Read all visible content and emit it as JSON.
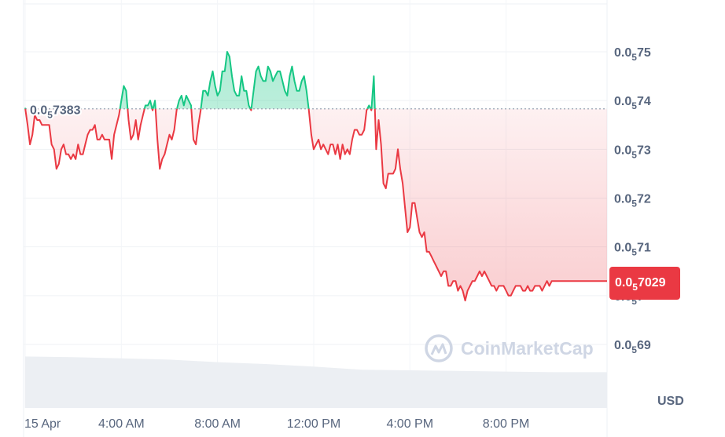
{
  "chart_data": {
    "type": "line",
    "title": "",
    "xlabel": "",
    "ylabel": "",
    "unit_label": "USD",
    "watermark": "CoinMarketCap",
    "reference": {
      "label_prefix": "0.0",
      "label_sub": "5",
      "label_rest": "7383",
      "value": 0.057383
    },
    "current": {
      "label_prefix": "0.0",
      "label_sub": "5",
      "label_rest": "7029",
      "value": 0.057029
    },
    "y_ticks": [
      {
        "prefix": "0.0",
        "sub": "5",
        "rest": "75",
        "value": 0.0575
      },
      {
        "prefix": "0.0",
        "sub": "5",
        "rest": "74",
        "value": 0.0574
      },
      {
        "prefix": "0.0",
        "sub": "5",
        "rest": "73",
        "value": 0.0573
      },
      {
        "prefix": "0.0",
        "sub": "5",
        "rest": "72",
        "value": 0.0572
      },
      {
        "prefix": "0.0",
        "sub": "5",
        "rest": "71",
        "value": 0.0571
      },
      {
        "prefix": "0.0",
        "sub": "5",
        "rest": "7",
        "value": 0.057
      },
      {
        "prefix": "0.0",
        "sub": "5",
        "rest": "69",
        "value": 0.0569
      }
    ],
    "ylim": [
      0.05685,
      0.0576
    ],
    "x_ticks": [
      {
        "label": "15 Apr",
        "hour": 0
      },
      {
        "label": "4:00 AM",
        "hour": 4
      },
      {
        "label": "8:00 AM",
        "hour": 8
      },
      {
        "label": "12:00 PM",
        "hour": 12
      },
      {
        "label": "4:00 PM",
        "hour": 16
      },
      {
        "label": "8:00 PM",
        "hour": 20
      }
    ],
    "xlim_hours": [
      0,
      24.2
    ],
    "up_color": "#16c784",
    "down_color": "#ea3943",
    "series": [
      {
        "x_hours": [
          0,
          0.1,
          0.2,
          0.3,
          0.4,
          0.5,
          0.6,
          0.7,
          0.8,
          0.9,
          1.0,
          1.1,
          1.2,
          1.3,
          1.4,
          1.5,
          1.6,
          1.7,
          1.8,
          1.9,
          2.0,
          2.1,
          2.2,
          2.3,
          2.4,
          2.5,
          2.6,
          2.7,
          2.8,
          2.9,
          3.0,
          3.1,
          3.2,
          3.3,
          3.4,
          3.5,
          3.6,
          3.7,
          3.8,
          3.9,
          4.0,
          4.1,
          4.2,
          4.3,
          4.4,
          4.5,
          4.6,
          4.7,
          4.8,
          4.9,
          5.0,
          5.1,
          5.2,
          5.3,
          5.4,
          5.5,
          5.6,
          5.7,
          5.8,
          5.9,
          6.0,
          6.1,
          6.2,
          6.3,
          6.4,
          6.5,
          6.6,
          6.7,
          6.8,
          6.9,
          7.0,
          7.1,
          7.2,
          7.3,
          7.4,
          7.5,
          7.6,
          7.7,
          7.8,
          7.9,
          8.0,
          8.1,
          8.2,
          8.3,
          8.4,
          8.5,
          8.6,
          8.7,
          8.8,
          8.9,
          9.0,
          9.1,
          9.2,
          9.3,
          9.4,
          9.5,
          9.6,
          9.7,
          9.8,
          9.9,
          10.0,
          10.1,
          10.2,
          10.3,
          10.4,
          10.5,
          10.6,
          10.7,
          10.8,
          10.9,
          11.0,
          11.1,
          11.2,
          11.3,
          11.4,
          11.5,
          11.6,
          11.7,
          11.8,
          11.9,
          12.0,
          12.1,
          12.2,
          12.3,
          12.4,
          12.5,
          12.6,
          12.7,
          12.8,
          12.9,
          13.0,
          13.1,
          13.2,
          13.3,
          13.4,
          13.5,
          13.6,
          13.7,
          13.8,
          13.9,
          14.0,
          14.1,
          14.2,
          14.3,
          14.4,
          14.5,
          14.6,
          14.7,
          14.8,
          14.9,
          15.0,
          15.1,
          15.2,
          15.3,
          15.4,
          15.5,
          15.6,
          15.7,
          15.8,
          15.9,
          16.0,
          16.1,
          16.2,
          16.3,
          16.4,
          16.5,
          16.6,
          16.7,
          16.8,
          16.9,
          17.0,
          17.1,
          17.2,
          17.3,
          17.4,
          17.5,
          17.6,
          17.7,
          17.8,
          17.9,
          18.0,
          18.1,
          18.2,
          18.3,
          18.4,
          18.5,
          18.6,
          18.7,
          18.8,
          18.9,
          19.0,
          19.1,
          19.2,
          19.3,
          19.4,
          19.5,
          19.6,
          19.7,
          19.8,
          19.9,
          20.0,
          20.1,
          20.2,
          20.3,
          20.4,
          20.5,
          20.6,
          20.7,
          20.8,
          20.9,
          21.0,
          21.1,
          21.2,
          21.3,
          21.4,
          21.5,
          21.6,
          21.7,
          21.8,
          21.9,
          22.0,
          22.1,
          22.2,
          22.3,
          22.4,
          22.5,
          22.6,
          22.7,
          22.8,
          22.9,
          23.0,
          23.1,
          23.2,
          23.3,
          23.4,
          23.5,
          23.6,
          23.7,
          23.8,
          23.9,
          24.0,
          24.1,
          24.2
        ],
        "values": [
          0.057385,
          0.05735,
          0.05731,
          0.05733,
          0.05737,
          0.05736,
          0.05736,
          0.05735,
          0.05735,
          0.05735,
          0.05735,
          0.05731,
          0.0573,
          0.05726,
          0.05727,
          0.0573,
          0.05731,
          0.05729,
          0.05729,
          0.05728,
          0.05729,
          0.05728,
          0.05731,
          0.05729,
          0.05729,
          0.05731,
          0.05733,
          0.05734,
          0.05734,
          0.05735,
          0.05732,
          0.05732,
          0.05733,
          0.05732,
          0.05732,
          0.05732,
          0.05728,
          0.05733,
          0.05735,
          0.05737,
          0.0574,
          0.05743,
          0.05742,
          0.05736,
          0.05732,
          0.05733,
          0.05736,
          0.05732,
          0.05735,
          0.05737,
          0.05739,
          0.05739,
          0.0574,
          0.05738,
          0.0574,
          0.05732,
          0.05726,
          0.05728,
          0.05729,
          0.05731,
          0.05733,
          0.05732,
          0.05734,
          0.05738,
          0.0574,
          0.05741,
          0.05739,
          0.05741,
          0.0574,
          0.05739,
          0.05732,
          0.05731,
          0.05735,
          0.05738,
          0.05742,
          0.05742,
          0.05741,
          0.05744,
          0.05746,
          0.05743,
          0.05741,
          0.05742,
          0.05746,
          0.05746,
          0.0575,
          0.05749,
          0.05745,
          0.05742,
          0.05741,
          0.05741,
          0.05745,
          0.05742,
          0.05742,
          0.05739,
          0.05738,
          0.05742,
          0.05746,
          0.05747,
          0.05745,
          0.05744,
          0.05744,
          0.05747,
          0.05746,
          0.05744,
          0.05745,
          0.05746,
          0.05746,
          0.05744,
          0.05742,
          0.05741,
          0.05745,
          0.05747,
          0.05744,
          0.05742,
          0.05742,
          0.05744,
          0.05745,
          0.05742,
          0.05738,
          0.05733,
          0.0573,
          0.05731,
          0.05732,
          0.0573,
          0.05731,
          0.0573,
          0.05729,
          0.05731,
          0.05731,
          0.05729,
          0.05731,
          0.05728,
          0.05731,
          0.05729,
          0.0573,
          0.05729,
          0.05732,
          0.05734,
          0.05734,
          0.05733,
          0.05733,
          0.05734,
          0.05738,
          0.05739,
          0.05738,
          0.05745,
          0.0573,
          0.05736,
          0.05731,
          0.05723,
          0.05722,
          0.05725,
          0.05725,
          0.05725,
          0.05726,
          0.0573,
          0.05726,
          0.05723,
          0.05718,
          0.05713,
          0.05714,
          0.05719,
          0.05719,
          0.05716,
          0.05713,
          0.05712,
          0.05713,
          0.05709,
          0.05709,
          0.05708,
          0.05707,
          0.05706,
          0.05705,
          0.05704,
          0.05705,
          0.05705,
          0.05702,
          0.05702,
          0.05703,
          0.05703,
          0.05701,
          0.05702,
          0.05701,
          0.05699,
          0.05701,
          0.05702,
          0.05703,
          0.05703,
          0.05704,
          0.05705,
          0.05704,
          0.05705,
          0.05704,
          0.05703,
          0.05702,
          0.05702,
          0.05701,
          0.05702,
          0.05702,
          0.05702,
          0.05701,
          0.057,
          0.057,
          0.05701,
          0.05702,
          0.05702,
          0.05702,
          0.05701,
          0.05701,
          0.05702,
          0.05701,
          0.05701,
          0.05702,
          0.05702,
          0.05702,
          0.05701,
          0.05702,
          0.05703,
          0.05702,
          0.05703,
          0.05703,
          0.05703,
          0.05703,
          0.05703,
          0.05703,
          0.05703,
          0.05703,
          0.05703,
          0.05703,
          0.05703,
          0.05703,
          0.05703,
          0.05703,
          0.05703,
          0.05703,
          0.05703,
          0.05703,
          0.05703,
          0.05703,
          0.05703,
          0.05703,
          0.05703,
          0.05703
        ]
      }
    ],
    "volume": {
      "x_hours": [
        0,
        2,
        4,
        6,
        8,
        10,
        12,
        14,
        16,
        18,
        20,
        22,
        24.2
      ],
      "values": [
        0.82,
        0.81,
        0.79,
        0.77,
        0.73,
        0.7,
        0.66,
        0.61,
        0.6,
        0.59,
        0.58,
        0.57,
        0.57
      ]
    }
  }
}
